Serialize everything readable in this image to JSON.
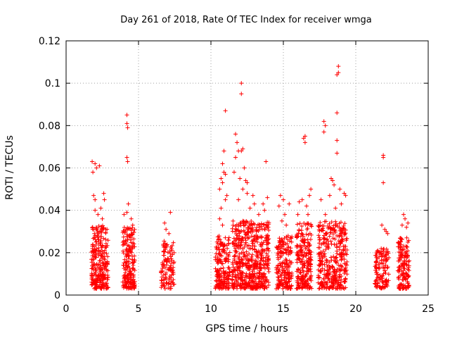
{
  "chart_data": {
    "type": "scatter",
    "title": "Day 261 of 2018, Rate Of TEC Index for receiver wmga",
    "xlabel": "GPS time / hours",
    "ylabel": "ROTI / TECUs",
    "xlim": [
      0,
      25
    ],
    "ylim": [
      0,
      0.12
    ],
    "xticks": [
      "0",
      "5",
      "10",
      "15",
      "20",
      "25"
    ],
    "yticks": [
      "0",
      "0.02",
      "0.04",
      "0.06",
      "0.08",
      "0.1",
      "0.12"
    ],
    "xtick_values": [
      0,
      5,
      10,
      15,
      20,
      25
    ],
    "ytick_values": [
      0,
      0.02,
      0.04,
      0.06,
      0.08,
      0.1,
      0.12
    ],
    "grid": true,
    "marker": "+",
    "color": "#ff0000",
    "clusters": [
      {
        "x": [
          1.75,
          2.9
        ],
        "y_base": [
          0.003,
          0.033
        ],
        "n": 260,
        "peaks": [
          [
            1.8,
            0.063
          ],
          [
            1.85,
            0.058
          ],
          [
            2.0,
            0.062
          ],
          [
            2.1,
            0.06
          ],
          [
            2.3,
            0.061
          ],
          [
            1.9,
            0.047
          ],
          [
            2.0,
            0.045
          ],
          [
            2.6,
            0.048
          ],
          [
            2.65,
            0.045
          ],
          [
            2.0,
            0.04
          ],
          [
            2.2,
            0.038
          ],
          [
            2.4,
            0.041
          ],
          [
            2.5,
            0.036
          ]
        ]
      },
      {
        "x": [
          3.9,
          4.75
        ],
        "y_base": [
          0.003,
          0.032
        ],
        "n": 200,
        "peaks": [
          [
            4.2,
            0.085
          ],
          [
            4.2,
            0.081
          ],
          [
            4.25,
            0.079
          ],
          [
            4.2,
            0.065
          ],
          [
            4.25,
            0.063
          ],
          [
            4.3,
            0.043
          ],
          [
            4.2,
            0.039
          ],
          [
            4.0,
            0.038
          ],
          [
            4.5,
            0.036
          ],
          [
            4.6,
            0.033
          ]
        ]
      },
      {
        "x": [
          6.55,
          7.5
        ],
        "y_base": [
          0.003,
          0.026
        ],
        "n": 110,
        "peaks": [
          [
            7.2,
            0.039
          ],
          [
            6.8,
            0.034
          ],
          [
            6.9,
            0.031
          ],
          [
            7.1,
            0.029
          ]
        ]
      },
      {
        "x": [
          10.3,
          11.3
        ],
        "y_base": [
          0.003,
          0.028
        ],
        "n": 180,
        "peaks": [
          [
            10.9,
            0.068
          ],
          [
            11.0,
            0.087
          ],
          [
            10.8,
            0.062
          ],
          [
            10.9,
            0.058
          ],
          [
            11.0,
            0.057
          ],
          [
            10.7,
            0.055
          ],
          [
            10.8,
            0.053
          ],
          [
            10.6,
            0.05
          ],
          [
            11.1,
            0.047
          ],
          [
            11.0,
            0.045
          ],
          [
            10.7,
            0.041
          ],
          [
            10.6,
            0.036
          ],
          [
            10.8,
            0.033
          ]
        ]
      },
      {
        "x": [
          11.45,
          14.0
        ],
        "y_base": [
          0.003,
          0.035
        ],
        "n": 560,
        "peaks": [
          [
            12.1,
            0.1
          ],
          [
            12.1,
            0.095
          ],
          [
            11.7,
            0.076
          ],
          [
            11.8,
            0.072
          ],
          [
            11.9,
            0.068
          ],
          [
            12.1,
            0.068
          ],
          [
            12.2,
            0.069
          ],
          [
            11.7,
            0.065
          ],
          [
            12.3,
            0.06
          ],
          [
            11.6,
            0.058
          ],
          [
            12.0,
            0.055
          ],
          [
            12.4,
            0.054
          ],
          [
            12.5,
            0.053
          ],
          [
            12.2,
            0.05
          ],
          [
            12.5,
            0.048
          ],
          [
            12.9,
            0.047
          ],
          [
            13.0,
            0.043
          ],
          [
            13.8,
            0.063
          ],
          [
            13.9,
            0.046
          ],
          [
            13.6,
            0.043
          ],
          [
            13.7,
            0.04
          ],
          [
            11.9,
            0.045
          ],
          [
            12.7,
            0.041
          ],
          [
            13.3,
            0.038
          ]
        ]
      },
      {
        "x": [
          14.5,
          15.6
        ],
        "y_base": [
          0.003,
          0.028
        ],
        "n": 200,
        "peaks": [
          [
            14.8,
            0.047
          ],
          [
            15.0,
            0.045
          ],
          [
            14.7,
            0.042
          ],
          [
            15.4,
            0.043
          ],
          [
            15.1,
            0.038
          ],
          [
            14.9,
            0.035
          ],
          [
            15.2,
            0.033
          ]
        ]
      },
      {
        "x": [
          15.9,
          16.95
        ],
        "y_base": [
          0.003,
          0.034
        ],
        "n": 230,
        "peaks": [
          [
            16.5,
            0.075
          ],
          [
            16.5,
            0.072
          ],
          [
            16.4,
            0.074
          ],
          [
            16.9,
            0.05
          ],
          [
            16.8,
            0.047
          ],
          [
            16.1,
            0.044
          ],
          [
            16.3,
            0.045
          ],
          [
            16.6,
            0.042
          ],
          [
            16.0,
            0.038
          ],
          [
            16.7,
            0.038
          ]
        ]
      },
      {
        "x": [
          17.4,
          19.4
        ],
        "y_base": [
          0.003,
          0.035
        ],
        "n": 360,
        "peaks": [
          [
            18.8,
            0.108
          ],
          [
            18.8,
            0.105
          ],
          [
            18.7,
            0.104
          ],
          [
            18.7,
            0.086
          ],
          [
            17.8,
            0.082
          ],
          [
            17.9,
            0.08
          ],
          [
            17.8,
            0.077
          ],
          [
            18.7,
            0.073
          ],
          [
            18.7,
            0.067
          ],
          [
            18.3,
            0.055
          ],
          [
            18.4,
            0.054
          ],
          [
            18.5,
            0.052
          ],
          [
            18.9,
            0.05
          ],
          [
            19.2,
            0.048
          ],
          [
            19.3,
            0.047
          ],
          [
            17.6,
            0.045
          ],
          [
            18.2,
            0.047
          ],
          [
            19.0,
            0.043
          ],
          [
            18.6,
            0.041
          ],
          [
            17.9,
            0.038
          ]
        ]
      },
      {
        "x": [
          21.3,
          22.3
        ],
        "y_base": [
          0.003,
          0.022
        ],
        "n": 120,
        "peaks": [
          [
            21.9,
            0.066
          ],
          [
            21.9,
            0.065
          ],
          [
            21.9,
            0.053
          ],
          [
            21.8,
            0.033
          ],
          [
            22.0,
            0.031
          ],
          [
            22.1,
            0.03
          ],
          [
            22.2,
            0.029
          ]
        ]
      },
      {
        "x": [
          22.9,
          23.7
        ],
        "y_base": [
          0.003,
          0.027
        ],
        "n": 150,
        "peaks": [
          [
            23.3,
            0.038
          ],
          [
            23.4,
            0.036
          ],
          [
            23.6,
            0.034
          ],
          [
            23.2,
            0.033
          ],
          [
            23.5,
            0.032
          ]
        ]
      }
    ]
  }
}
